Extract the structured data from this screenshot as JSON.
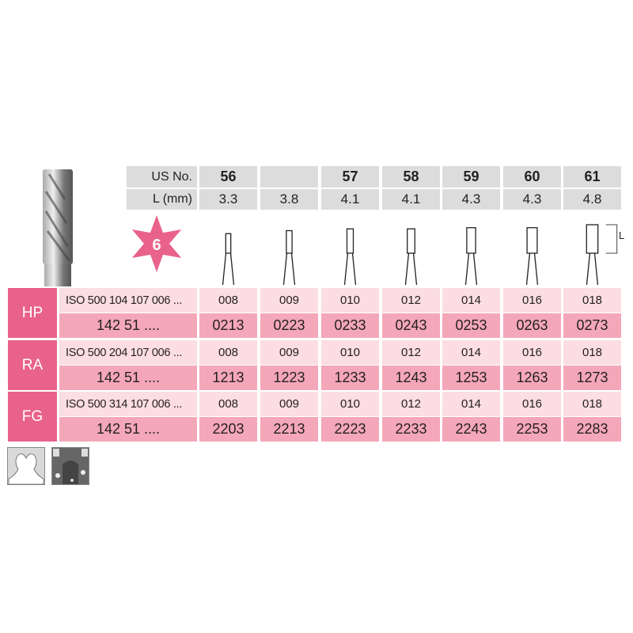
{
  "header": {
    "us_label": "US No.",
    "l_label": "L (mm)",
    "us_numbers": [
      "56",
      "",
      "57",
      "58",
      "59",
      "60",
      "61"
    ],
    "lengths_mm": [
      "3.3",
      "3.8",
      "4.1",
      "4.1",
      "4.3",
      "4.3",
      "4.8"
    ]
  },
  "badge": {
    "label": "6",
    "color": "#e9628b"
  },
  "dimension_label": "L",
  "rows": [
    {
      "label": "HP",
      "iso": "ISO 500 104 107 006 ...",
      "ref": "142 51 ....",
      "sizes": [
        "008",
        "009",
        "010",
        "012",
        "014",
        "016",
        "018"
      ],
      "codes": [
        "0213",
        "0223",
        "0233",
        "0243",
        "0253",
        "0263",
        "0273"
      ]
    },
    {
      "label": "RA",
      "iso": "ISO 500 204 107 006 ...",
      "ref": "142 51 ....",
      "sizes": [
        "008",
        "009",
        "010",
        "012",
        "014",
        "016",
        "018"
      ],
      "codes": [
        "1213",
        "1223",
        "1233",
        "1243",
        "1253",
        "1263",
        "1273"
      ]
    },
    {
      "label": "FG",
      "iso": "ISO 500 314 107 006 ...",
      "ref": "142 51 ....",
      "sizes": [
        "008",
        "009",
        "010",
        "012",
        "014",
        "016",
        "018"
      ],
      "codes": [
        "2203",
        "2213",
        "2223",
        "2233",
        "2243",
        "2253",
        "2283"
      ]
    }
  ],
  "colors": {
    "label_bg": "#e9628b",
    "light_row": "#fbdde3",
    "dark_row": "#f4a7b8",
    "header_bg": "#dcdcdc"
  },
  "icons": [
    "bur-product-image",
    "cavity-prep-icon",
    "bone-cutting-icon"
  ]
}
